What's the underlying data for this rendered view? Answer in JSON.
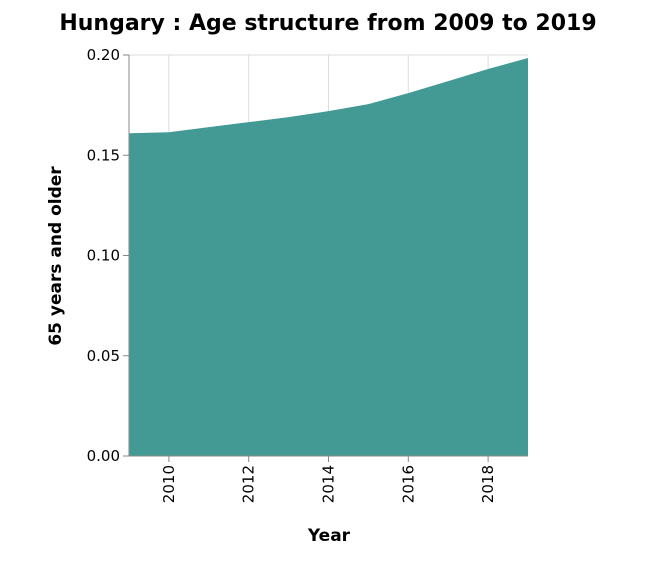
{
  "chart_data": {
    "type": "area",
    "title": "Hungary : Age structure from 2009 to 2019",
    "xlabel": "Year",
    "ylabel": "65 years and older",
    "x": [
      2009,
      2010,
      2011,
      2012,
      2013,
      2014,
      2015,
      2016,
      2017,
      2018,
      2019
    ],
    "series": [
      {
        "name": "",
        "values": [
          0.161,
          0.1615,
          0.164,
          0.1665,
          0.169,
          0.172,
          0.1755,
          0.181,
          0.187,
          0.193,
          0.1985
        ]
      }
    ],
    "xlim": [
      2009,
      2019
    ],
    "ylim": [
      0,
      0.2
    ],
    "x_ticks": [
      2010,
      2012,
      2014,
      2016,
      2018
    ],
    "x_tick_labels": [
      "2010",
      "2012",
      "2014",
      "2016",
      "2018"
    ],
    "y_ticks": [
      0,
      0.05,
      0.1,
      0.15,
      0.2
    ],
    "y_tick_labels": [
      "0.00",
      "0.05",
      "0.10",
      "0.15",
      "0.20"
    ],
    "grid": true,
    "fill_color": "#439a94",
    "grid_color": "#dddddd",
    "axis_color": "#888888"
  }
}
